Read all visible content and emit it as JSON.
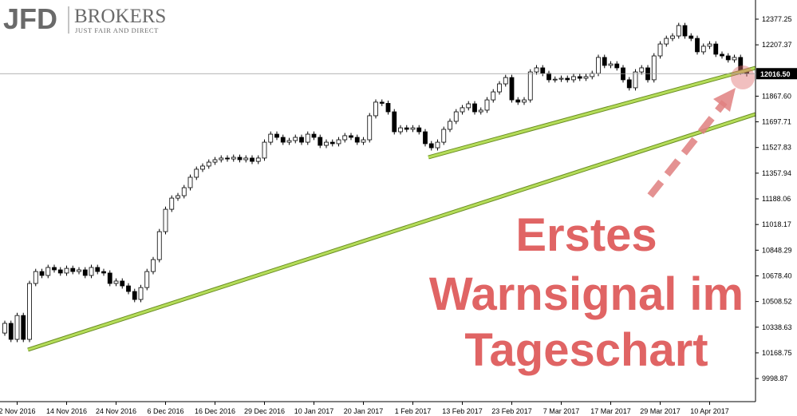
{
  "logo": {
    "mark": "JFD",
    "name": "BROKERS",
    "tagline": "JUST FAIR AND DIRECT"
  },
  "chart_data": {
    "type": "candlestick",
    "annotation": [
      "Erstes",
      "Warnsignal im",
      "Tageschart"
    ],
    "up_color": "#ffffff",
    "down_color": "#000000",
    "grid": false,
    "ylim": [
      9846,
      12504
    ],
    "yticks": [
      {
        "value": 9998.87,
        "label": "9998.87"
      },
      10168.75,
      10338.63,
      10508.52,
      {
        "value": 10678.4,
        "label": "10678.40"
      },
      10848.29,
      11018.17,
      11188.06,
      11357.94,
      11527.83,
      11697.71,
      {
        "value": 11867.6,
        "label": "11867.60"
      },
      12207.37,
      12377.25
    ],
    "current_price": {
      "value": 12016.5,
      "label": "12016.50"
    },
    "categories": [
      null,
      null,
      "2 Nov 2016",
      null,
      null,
      null,
      null,
      null,
      null,
      null,
      "14 Nov 2016",
      null,
      null,
      null,
      null,
      null,
      null,
      null,
      "24 Nov 2016",
      null,
      null,
      null,
      null,
      null,
      null,
      null,
      "6 Dec 2016",
      null,
      null,
      null,
      null,
      null,
      null,
      null,
      "16 Dec 2016",
      null,
      null,
      null,
      null,
      null,
      null,
      null,
      "29 Dec 2016",
      null,
      null,
      null,
      null,
      null,
      null,
      null,
      "10 Jan 2017",
      null,
      null,
      null,
      null,
      null,
      null,
      null,
      "20 Jan 2017",
      null,
      null,
      null,
      null,
      null,
      null,
      null,
      "1 Feb 2017",
      null,
      null,
      null,
      null,
      null,
      null,
      null,
      "13 Feb 2017",
      null,
      null,
      null,
      null,
      null,
      null,
      null,
      "23 Feb 2017",
      null,
      null,
      null,
      null,
      null,
      null,
      null,
      "7 Mar 2017",
      null,
      null,
      null,
      null,
      null,
      null,
      null,
      "17 Mar 2017",
      null,
      null,
      null,
      null,
      null,
      null,
      null,
      "29 Mar 2017",
      null,
      null,
      null,
      null,
      null,
      null,
      null,
      "10 Apr 2017",
      null,
      null,
      null,
      null,
      null,
      null
    ],
    "ohlc": [
      [
        10300,
        10382,
        10282,
        10364
      ],
      [
        10364,
        10382,
        10240,
        10258
      ],
      [
        10258,
        10434,
        10240,
        10416
      ],
      [
        10416,
        10434,
        10240,
        10258
      ],
      [
        10258,
        10646,
        10240,
        10628
      ],
      [
        10628,
        10725,
        10610,
        10707
      ],
      [
        10707,
        10725,
        10663,
        10681
      ],
      [
        10681,
        10752,
        10663,
        10734
      ],
      [
        10734,
        10752,
        10700,
        10718
      ],
      [
        10718,
        10736,
        10679,
        10697
      ],
      [
        10697,
        10746,
        10679,
        10728
      ],
      [
        10728,
        10746,
        10689,
        10707
      ],
      [
        10707,
        10736,
        10689,
        10718
      ],
      [
        10718,
        10736,
        10663,
        10681
      ],
      [
        10681,
        10752,
        10663,
        10734
      ],
      [
        10734,
        10752,
        10689,
        10707
      ],
      [
        10707,
        10725,
        10679,
        10697
      ],
      [
        10697,
        10715,
        10610,
        10628
      ],
      [
        10628,
        10662,
        10610,
        10644
      ],
      [
        10644,
        10662,
        10594,
        10612
      ],
      [
        10612,
        10630,
        10557,
        10575
      ],
      [
        10575,
        10593,
        10504,
        10522
      ],
      [
        10522,
        10619,
        10504,
        10601
      ],
      [
        10601,
        10725,
        10583,
        10707
      ],
      [
        10707,
        10804,
        10689,
        10786
      ],
      [
        10786,
        10989,
        10768,
        10971
      ],
      [
        10971,
        11137,
        10953,
        11119
      ],
      [
        11119,
        11211,
        11101,
        11193
      ],
      [
        11193,
        11227,
        11175,
        11209
      ],
      [
        11209,
        11280,
        11191,
        11262
      ],
      [
        11262,
        11349,
        11244,
        11331
      ],
      [
        11331,
        11402,
        11313,
        11384
      ],
      [
        11384,
        11423,
        11366,
        11405
      ],
      [
        11405,
        11449,
        11387,
        11431
      ],
      [
        11431,
        11465,
        11413,
        11447
      ],
      [
        11447,
        11476,
        11429,
        11458
      ],
      [
        11458,
        11476,
        11434,
        11452
      ],
      [
        11452,
        11481,
        11434,
        11463
      ],
      [
        11463,
        11481,
        11429,
        11447
      ],
      [
        11447,
        11476,
        11429,
        11458
      ],
      [
        11458,
        11476,
        11418,
        11436
      ],
      [
        11436,
        11476,
        11418,
        11458
      ],
      [
        11458,
        11581,
        11440,
        11563
      ],
      [
        11563,
        11634,
        11545,
        11616
      ],
      [
        11616,
        11634,
        11577,
        11595
      ],
      [
        11595,
        11613,
        11545,
        11563
      ],
      [
        11563,
        11592,
        11545,
        11574
      ],
      [
        11574,
        11613,
        11556,
        11595
      ],
      [
        11595,
        11613,
        11545,
        11563
      ],
      [
        11563,
        11634,
        11545,
        11616
      ],
      [
        11616,
        11634,
        11577,
        11595
      ],
      [
        11595,
        11613,
        11524,
        11542
      ],
      [
        11542,
        11581,
        11524,
        11563
      ],
      [
        11563,
        11581,
        11535,
        11553
      ],
      [
        11553,
        11597,
        11535,
        11579
      ],
      [
        11579,
        11624,
        11561,
        11606
      ],
      [
        11606,
        11624,
        11577,
        11595
      ],
      [
        11595,
        11613,
        11545,
        11563
      ],
      [
        11563,
        11597,
        11545,
        11579
      ],
      [
        11579,
        11756,
        11561,
        11738
      ],
      [
        11738,
        11846,
        11720,
        11828
      ],
      [
        11828,
        11846,
        11802,
        11820
      ],
      [
        11820,
        11838,
        11746,
        11764
      ],
      [
        11764,
        11782,
        11614,
        11632
      ],
      [
        11632,
        11676,
        11614,
        11658
      ],
      [
        11658,
        11676,
        11630,
        11648
      ],
      [
        11648,
        11676,
        11630,
        11658
      ],
      [
        11658,
        11676,
        11614,
        11632
      ],
      [
        11632,
        11650,
        11535,
        11553
      ],
      [
        11553,
        11571,
        11508,
        11526
      ],
      [
        11526,
        11581,
        11508,
        11563
      ],
      [
        11563,
        11666,
        11545,
        11648
      ],
      [
        11648,
        11719,
        11630,
        11701
      ],
      [
        11701,
        11782,
        11683,
        11764
      ],
      [
        11764,
        11809,
        11746,
        11791
      ],
      [
        11791,
        11835,
        11773,
        11817
      ],
      [
        11817,
        11835,
        11746,
        11764
      ],
      [
        11764,
        11793,
        11746,
        11775
      ],
      [
        11775,
        11861,
        11757,
        11843
      ],
      [
        11843,
        11914,
        11825,
        11896
      ],
      [
        11896,
        11967,
        11878,
        11949
      ],
      [
        11949,
        12009,
        11931,
        11991
      ],
      [
        11991,
        12009,
        11825,
        11843
      ],
      [
        11843,
        11861,
        11810,
        11828
      ],
      [
        11828,
        11861,
        11810,
        11843
      ],
      [
        11843,
        12046,
        11825,
        12028
      ],
      [
        12028,
        12073,
        12010,
        12055
      ],
      [
        12055,
        12073,
        12000,
        12018
      ],
      [
        12018,
        12036,
        11958,
        11976
      ],
      [
        11976,
        11998,
        11958,
        11980
      ],
      [
        11980,
        12004,
        11962,
        11986
      ],
      [
        11986,
        12004,
        11958,
        11976
      ],
      [
        11976,
        12015,
        11958,
        11997
      ],
      [
        11997,
        12015,
        11968,
        11986
      ],
      [
        11986,
        12015,
        11968,
        11997
      ],
      [
        11997,
        12036,
        11979,
        12018
      ],
      [
        12018,
        12142,
        12000,
        12124
      ],
      [
        12124,
        12142,
        12053,
        12071
      ],
      [
        12071,
        12099,
        12053,
        12081
      ],
      [
        12081,
        12099,
        12037,
        12055
      ],
      [
        12055,
        12073,
        11958,
        11976
      ],
      [
        11976,
        11994,
        11905,
        11923
      ],
      [
        11923,
        12046,
        11905,
        12028
      ],
      [
        12028,
        12073,
        12010,
        12055
      ],
      [
        12055,
        12073,
        11958,
        11976
      ],
      [
        11976,
        12152,
        11958,
        12134
      ],
      [
        12134,
        12231,
        12116,
        12213
      ],
      [
        12213,
        12268,
        12195,
        12250
      ],
      [
        12250,
        12284,
        12232,
        12266
      ],
      [
        12266,
        12353,
        12248,
        12335
      ],
      [
        12335,
        12353,
        12248,
        12266
      ],
      [
        12266,
        12284,
        12232,
        12250
      ],
      [
        12250,
        12268,
        12143,
        12161
      ],
      [
        12161,
        12216,
        12143,
        12198
      ],
      [
        12198,
        12231,
        12180,
        12213
      ],
      [
        12213,
        12231,
        12127,
        12145
      ],
      [
        12145,
        12163,
        12116,
        12134
      ],
      [
        12134,
        12152,
        12090,
        12108
      ],
      [
        12108,
        12142,
        12090,
        12124
      ],
      [
        12124,
        12142,
        12010,
        12028
      ],
      [
        12028,
        12046,
        11998,
        12016.5
      ]
    ]
  }
}
